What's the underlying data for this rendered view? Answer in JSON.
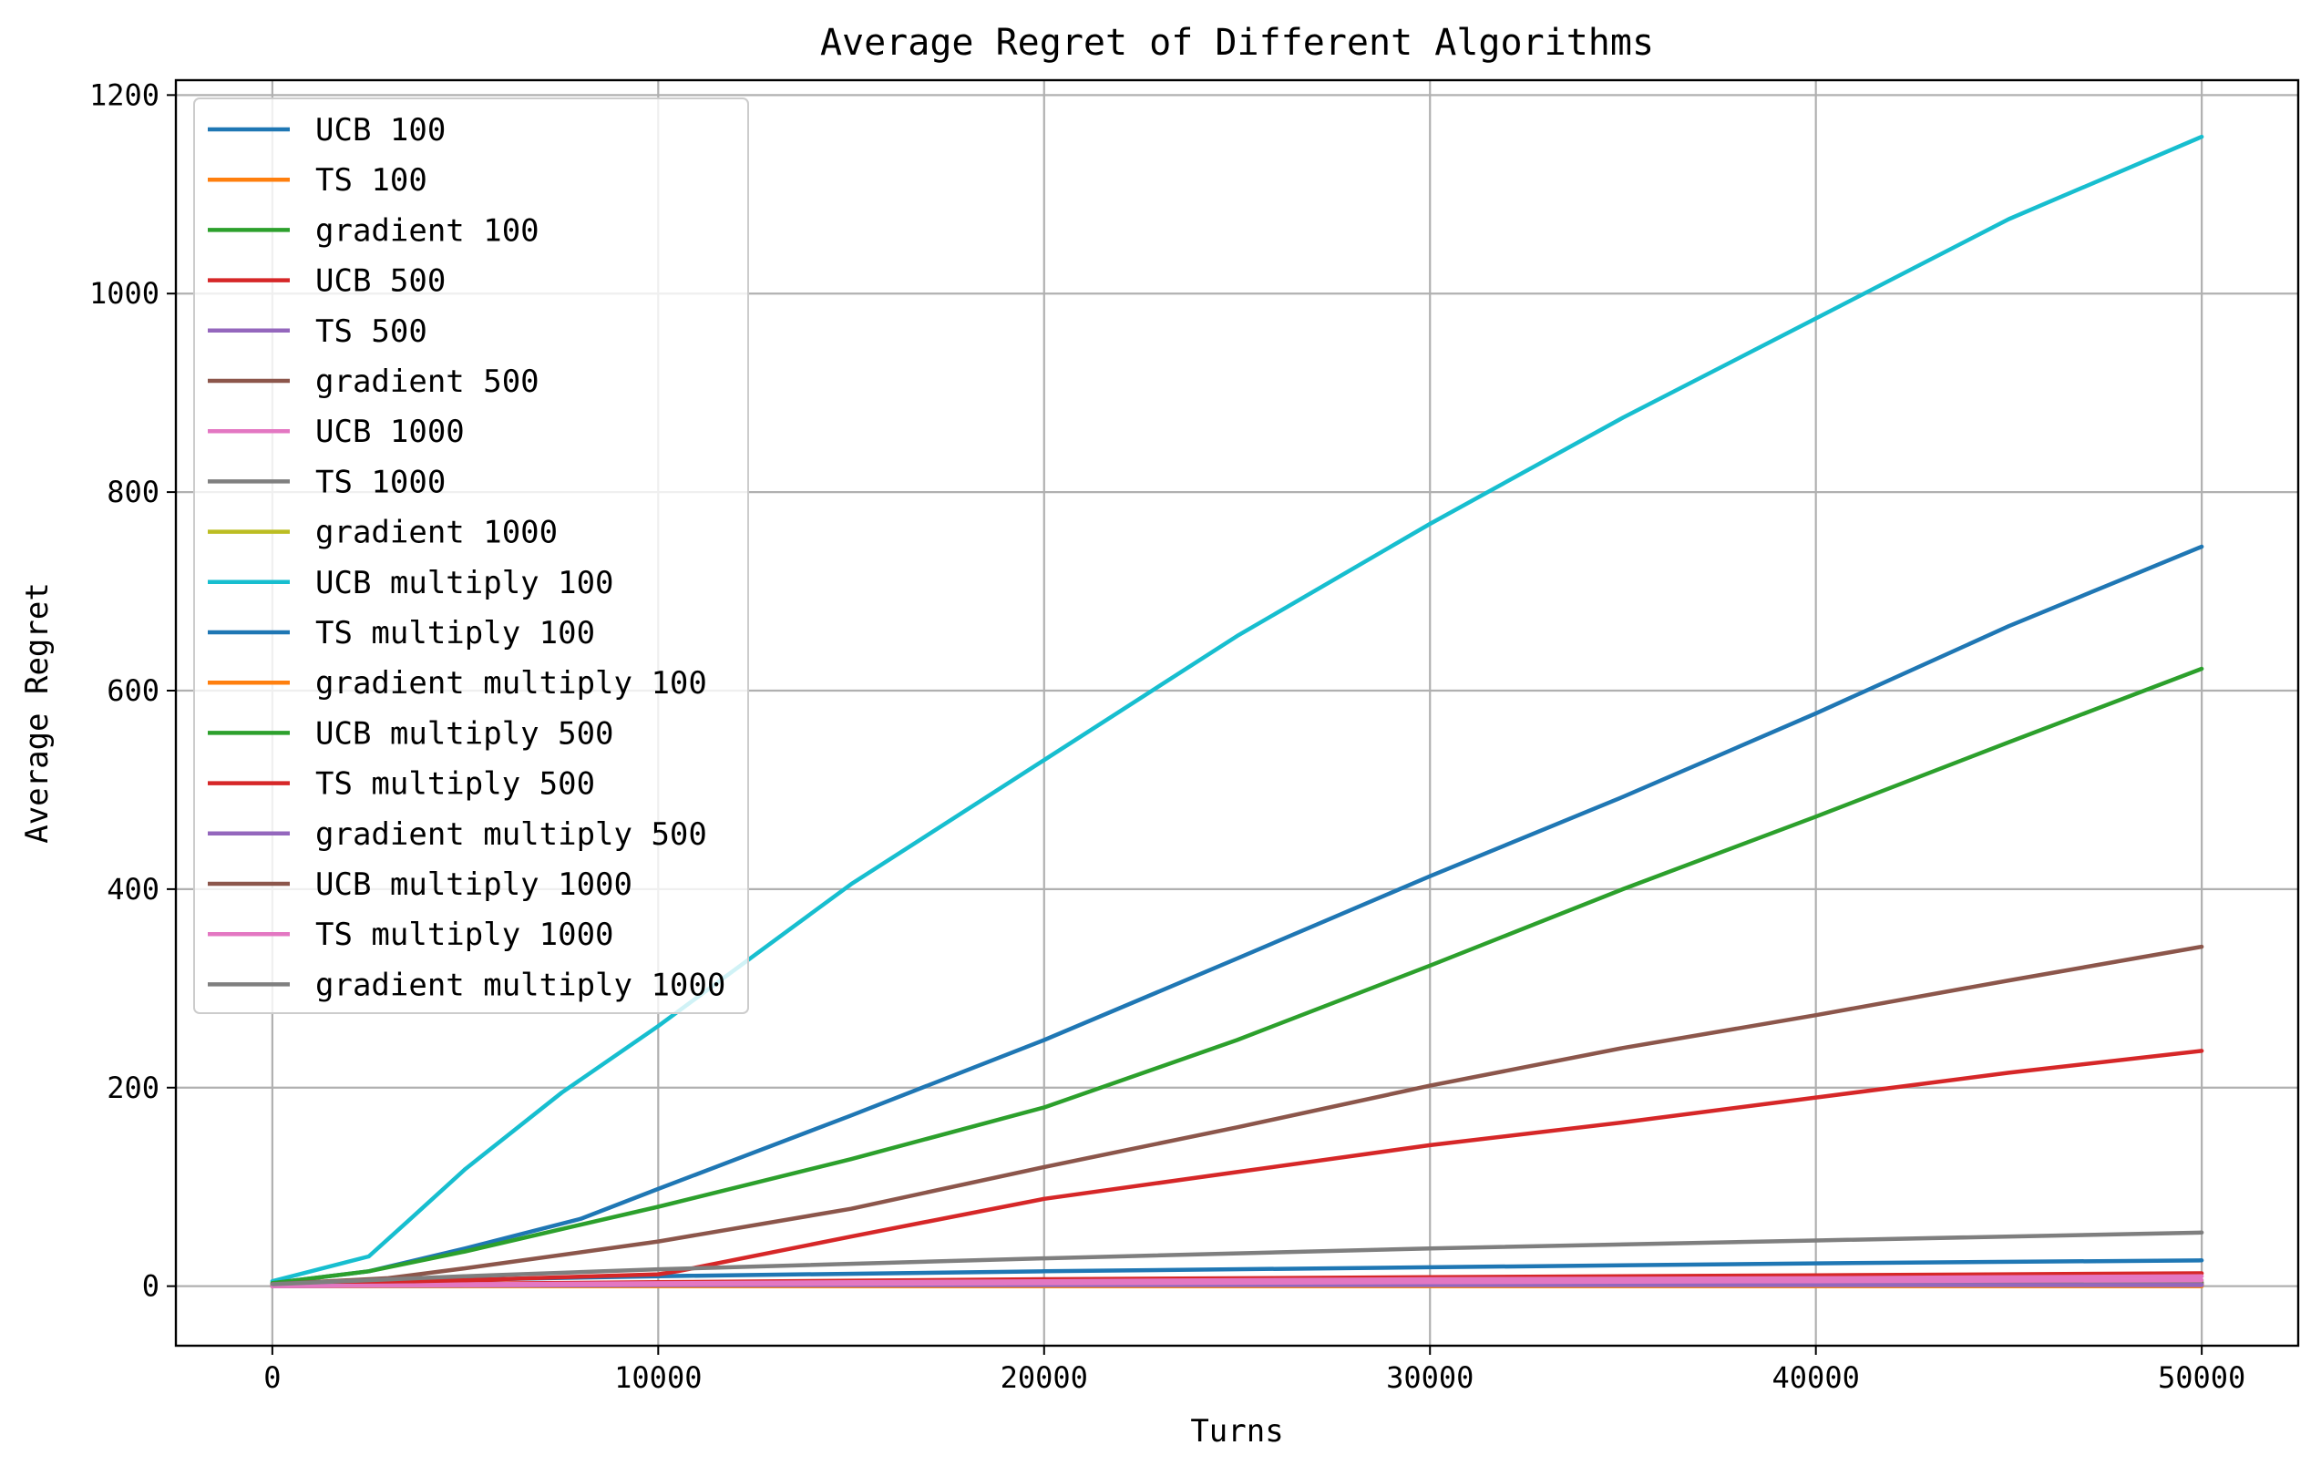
{
  "chart_data": {
    "type": "line",
    "title": "Average Regret of Different Algorithms",
    "xlabel": "Turns",
    "ylabel": "Average Regret",
    "xlim": [
      -2500,
      52500
    ],
    "ylim": [
      -60,
      1215
    ],
    "xticks": [
      0,
      10000,
      20000,
      30000,
      40000,
      50000
    ],
    "xtick_labels": [
      "0",
      "10000",
      "20000",
      "30000",
      "40000",
      "50000"
    ],
    "yticks": [
      0,
      200,
      400,
      600,
      800,
      1000,
      1200
    ],
    "ytick_labels": [
      "0",
      "200",
      "400",
      "600",
      "800",
      "1000",
      "1200"
    ],
    "grid": true,
    "legend_position": "upper-left",
    "series": [
      {
        "name": "UCB 100",
        "color": "#1f77b4",
        "x": [
          0,
          10000,
          20000,
          30000,
          40000,
          50000
        ],
        "y": [
          3,
          10,
          15,
          19,
          23,
          26
        ]
      },
      {
        "name": "TS 100",
        "color": "#ff7f0e",
        "x": [
          0,
          10000,
          20000,
          30000,
          40000,
          50000
        ],
        "y": [
          0,
          1,
          1,
          2,
          2,
          2
        ]
      },
      {
        "name": "gradient 100",
        "color": "#2ca02c",
        "x": [
          0,
          10000,
          20000,
          30000,
          40000,
          50000
        ],
        "y": [
          1,
          2,
          3,
          3,
          4,
          4
        ]
      },
      {
        "name": "UCB 500",
        "color": "#d62728",
        "x": [
          0,
          10000,
          20000,
          30000,
          40000,
          50000
        ],
        "y": [
          1,
          4,
          7,
          9,
          11,
          13
        ]
      },
      {
        "name": "TS 500",
        "color": "#9467bd",
        "x": [
          0,
          10000,
          20000,
          30000,
          40000,
          50000
        ],
        "y": [
          0,
          1,
          1,
          1,
          2,
          2
        ]
      },
      {
        "name": "gradient 500",
        "color": "#8c564b",
        "x": [
          0,
          10000,
          20000,
          30000,
          40000,
          50000
        ],
        "y": [
          0,
          1,
          2,
          2,
          2,
          3
        ]
      },
      {
        "name": "UCB 1000",
        "color": "#e377c2",
        "x": [
          0,
          10000,
          20000,
          30000,
          40000,
          50000
        ],
        "y": [
          1,
          3,
          5,
          7,
          8,
          10
        ]
      },
      {
        "name": "TS 1000",
        "color": "#7f7f7f",
        "x": [
          0,
          10000,
          20000,
          30000,
          40000,
          50000
        ],
        "y": [
          0,
          1,
          1,
          1,
          1,
          2
        ]
      },
      {
        "name": "gradient 1000",
        "color": "#bcbd22",
        "x": [
          0,
          10000,
          20000,
          30000,
          40000,
          50000
        ],
        "y": [
          0,
          0,
          0,
          0,
          0,
          0
        ]
      },
      {
        "name": "UCB multiply 100",
        "color": "#17becf",
        "x": [
          0,
          2500,
          3500,
          5000,
          7500,
          10000,
          15000,
          20000,
          25000,
          30000,
          35000,
          40000,
          45000,
          50000
        ],
        "y": [
          5,
          30,
          65,
          118,
          195,
          262,
          405,
          530,
          655,
          768,
          875,
          975,
          1075,
          1158
        ]
      },
      {
        "name": "TS multiply 100",
        "color": "#1f77b4",
        "x": [
          0,
          2500,
          5000,
          8000,
          10000,
          15000,
          20000,
          25000,
          30000,
          35000,
          40000,
          45000,
          50000
        ],
        "y": [
          3,
          15,
          38,
          68,
          98,
          172,
          248,
          330,
          413,
          493,
          577,
          665,
          745
        ]
      },
      {
        "name": "gradient multiply 100",
        "color": "#ff7f0e",
        "x": [
          0,
          10000,
          20000,
          30000,
          40000,
          50000
        ],
        "y": [
          0,
          0,
          0,
          0,
          0,
          0
        ]
      },
      {
        "name": "UCB multiply 500",
        "color": "#2ca02c",
        "x": [
          0,
          2500,
          5000,
          10000,
          15000,
          20000,
          25000,
          30000,
          35000,
          40000,
          45000,
          50000
        ],
        "y": [
          3,
          15,
          35,
          80,
          128,
          180,
          248,
          323,
          400,
          473,
          548,
          622
        ]
      },
      {
        "name": "TS multiply 500",
        "color": "#d62728",
        "x": [
          0,
          5000,
          10000,
          10500,
          15000,
          20000,
          25000,
          30000,
          35000,
          40000,
          45000,
          50000
        ],
        "y": [
          2,
          6,
          12,
          15,
          50,
          88,
          115,
          142,
          165,
          190,
          215,
          237
        ]
      },
      {
        "name": "gradient multiply 500",
        "color": "#9467bd",
        "x": [
          0,
          10000,
          20000,
          30000,
          40000,
          50000
        ],
        "y": [
          0,
          1,
          1,
          1,
          1,
          1
        ]
      },
      {
        "name": "UCB multiply 1000",
        "color": "#8c564b",
        "x": [
          0,
          3000,
          5000,
          10000,
          15000,
          20000,
          25000,
          30000,
          35000,
          40000,
          45000,
          50000
        ],
        "y": [
          2,
          8,
          18,
          45,
          78,
          120,
          160,
          202,
          240,
          273,
          308,
          342
        ]
      },
      {
        "name": "TS multiply 1000",
        "color": "#e377c2",
        "x": [
          0,
          10000,
          20000,
          30000,
          40000,
          50000
        ],
        "y": [
          0,
          2,
          3,
          4,
          5,
          6
        ]
      },
      {
        "name": "gradient multiply 1000",
        "color": "#7f7f7f",
        "x": [
          0,
          5000,
          10000,
          20000,
          30000,
          40000,
          50000
        ],
        "y": [
          2,
          10,
          17,
          28,
          38,
          46,
          54
        ]
      }
    ]
  }
}
